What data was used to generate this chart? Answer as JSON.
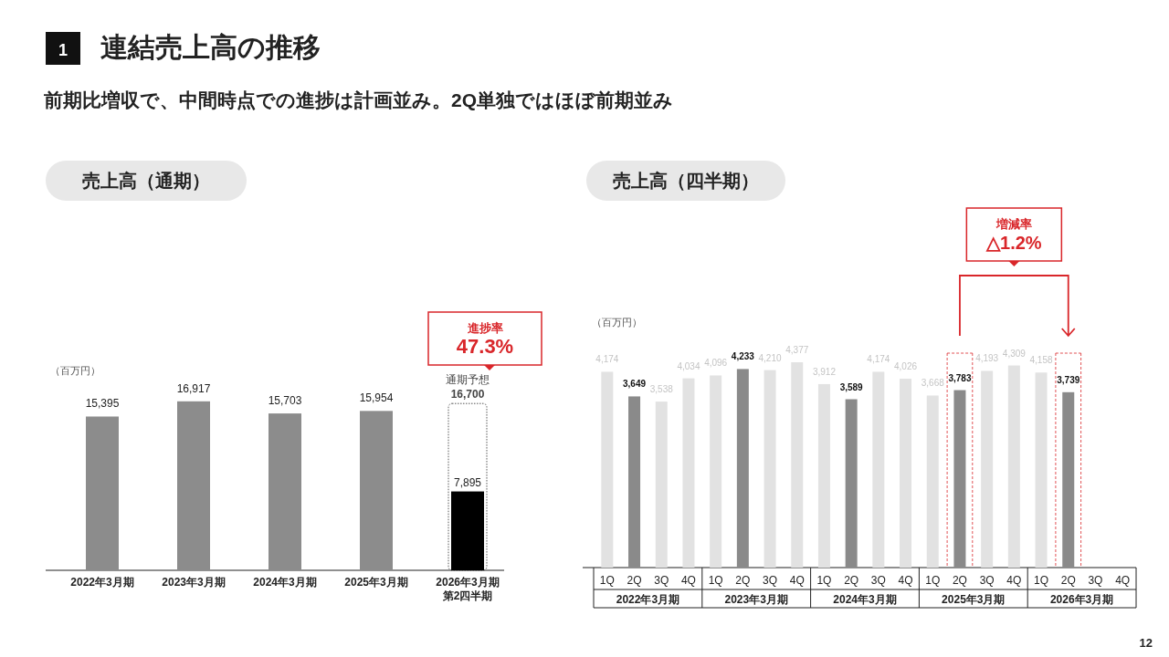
{
  "chart_data": [
    {
      "type": "bar",
      "title": "連結売上高の推移",
      "subtitle": "前期比増収で、中間時点での進捗は計画並み。2Q単独ではほぼ前期並み",
      "ylabel": "（百万円）",
      "categories": [
        "2022年3月期",
        "2023年3月期",
        "2024年3月期",
        "2025年3月期",
        "2026年3月期第2四半期"
      ],
      "series": [
        {
          "name": "通期予想",
          "color": "#555555",
          "line_style": "dotted",
          "values": [
            null,
            null,
            null,
            null,
            16700
          ],
          "value_labels": [
            null,
            null,
            null,
            null,
            "16,700"
          ]
        },
        {
          "colors": [
            "#8c8c8c",
            "#8c8c8c",
            "#8c8c8c",
            "#8c8c8c",
            "#000000"
          ],
          "values": [
            15395,
            16917,
            15703,
            15954,
            7895
          ],
          "value_labels": [
            "15,395",
            "16,917",
            "15,703",
            "15,954",
            "7,895"
          ]
        }
      ],
      "annotations": [
        "売上高（通期）",
        "進捗率\n47.3%",
        "1"
      ]
    },
    {
      "type": "bar",
      "title": "売上高（四半期）",
      "ylabel": "（百万円）",
      "categories": [
        "1Q",
        "2Q",
        "3Q",
        "4Q",
        "1Q",
        "2Q",
        "3Q",
        "4Q",
        "1Q",
        "2Q",
        "3Q",
        "4Q",
        "1Q",
        "2Q",
        "3Q",
        "4Q",
        "1Q",
        "2Q",
        "3Q",
        "4Q"
      ],
      "series": [
        {
          "colors": [
            "#e2e2e2",
            "#8a8a8a",
            "#e2e2e2",
            "#e2e2e2",
            "#e2e2e2",
            "#8a8a8a",
            "#e2e2e2",
            "#e2e2e2",
            "#e2e2e2",
            "#8a8a8a",
            "#e2e2e2",
            "#e2e2e2",
            "#e2e2e2",
            "#8a8a8a",
            "#e2e2e2",
            "#e2e2e2",
            "#e2e2e2",
            "#8a8a8a",
            "#e2e2e2",
            "#e2e2e2"
          ],
          "values": [
            4174,
            3649,
            3538,
            4034,
            4096,
            4233,
            4210,
            4377,
            3912,
            3589,
            4174,
            4026,
            3668,
            3783,
            4193,
            4309,
            4158,
            3739,
            null,
            null
          ],
          "value_labels": [
            "4,174",
            "3,649",
            "3,538",
            "4,034",
            "4,096",
            "4,233",
            "4,210",
            "4,377",
            "3,912",
            "3,589",
            "4,174",
            "4,026",
            "3,668",
            "3,783",
            "4,193",
            "4,309",
            "4,158",
            "3,739",
            null,
            null
          ]
        }
      ],
      "annotations": [
        "増減率\n△1.2%",
        "2022年3月期",
        "2023年3月期",
        "2024年3月期",
        "2025年3月期",
        "2026年3月期",
        "12"
      ]
    }
  ]
}
